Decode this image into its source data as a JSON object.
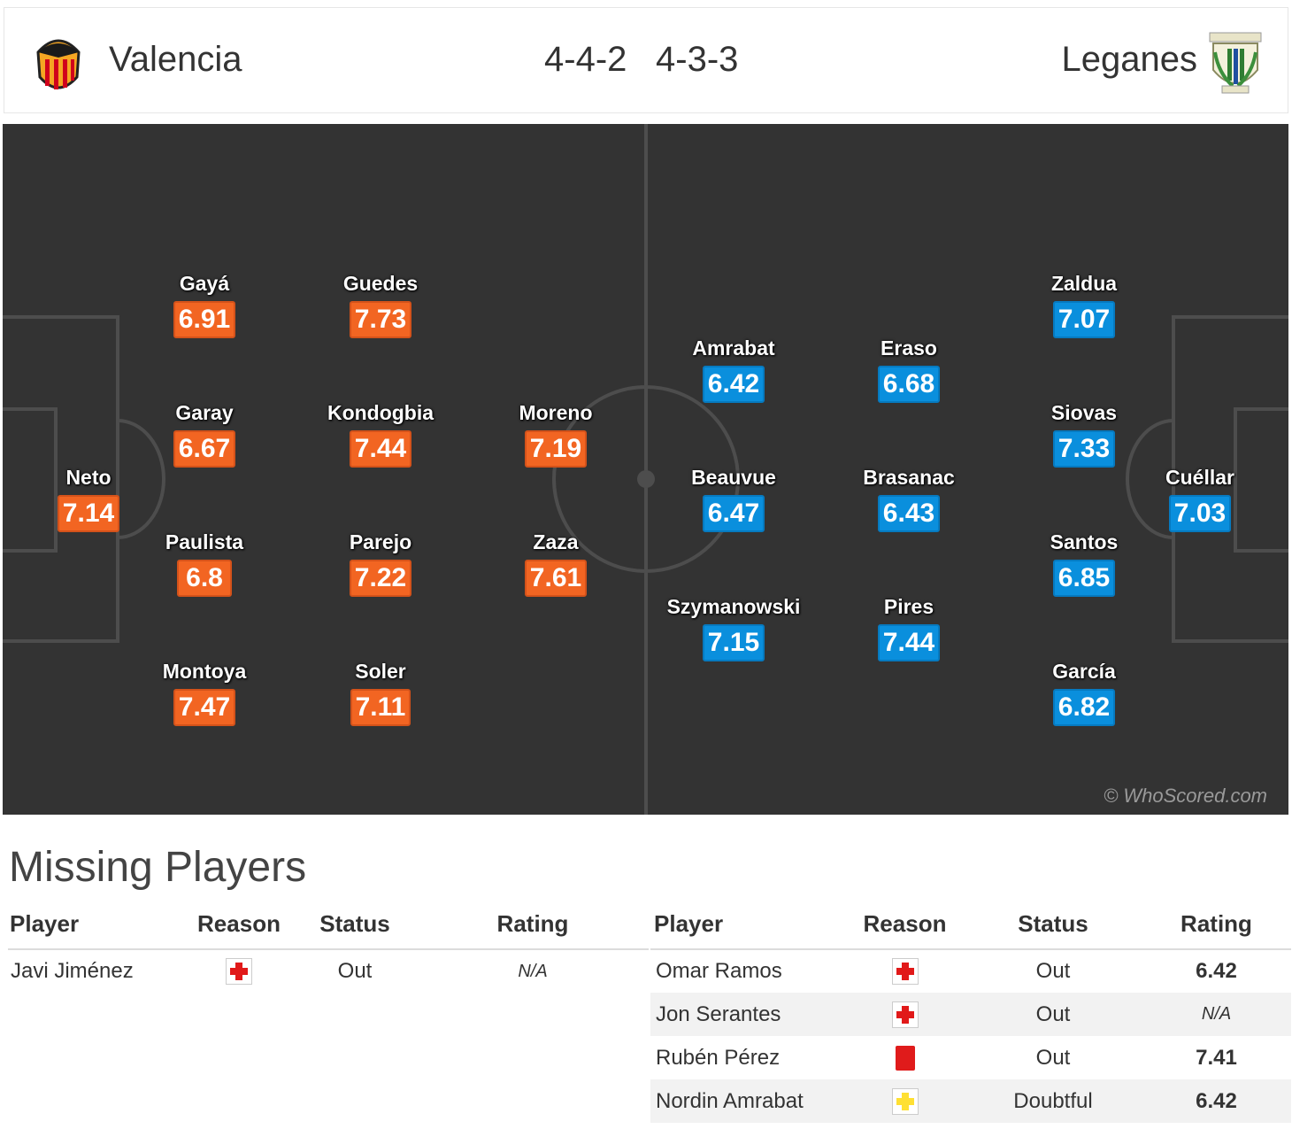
{
  "header": {
    "home_team": "Valencia",
    "away_team": "Leganes",
    "home_formation": "4-4-2",
    "away_formation": "4-3-3"
  },
  "pitch": {
    "watermark": "© WhoScored.com",
    "home_players": [
      {
        "name": "Neto",
        "rating": "7.14"
      },
      {
        "name": "Gayá",
        "rating": "6.91"
      },
      {
        "name": "Garay",
        "rating": "6.67"
      },
      {
        "name": "Paulista",
        "rating": "6.8"
      },
      {
        "name": "Montoya",
        "rating": "7.47"
      },
      {
        "name": "Guedes",
        "rating": "7.73"
      },
      {
        "name": "Kondogbia",
        "rating": "7.44"
      },
      {
        "name": "Parejo",
        "rating": "7.22"
      },
      {
        "name": "Soler",
        "rating": "7.11"
      },
      {
        "name": "Moreno",
        "rating": "7.19"
      },
      {
        "name": "Zaza",
        "rating": "7.61"
      }
    ],
    "away_players": [
      {
        "name": "Amrabat",
        "rating": "6.42"
      },
      {
        "name": "Beauvue",
        "rating": "6.47"
      },
      {
        "name": "Szymanowski",
        "rating": "7.15"
      },
      {
        "name": "Eraso",
        "rating": "6.68"
      },
      {
        "name": "Brasanac",
        "rating": "6.43"
      },
      {
        "name": "Pires",
        "rating": "7.44"
      },
      {
        "name": "Zaldua",
        "rating": "7.07"
      },
      {
        "name": "Siovas",
        "rating": "7.33"
      },
      {
        "name": "Santos",
        "rating": "6.85"
      },
      {
        "name": "García",
        "rating": "6.82"
      },
      {
        "name": "Cuéllar",
        "rating": "7.03"
      }
    ]
  },
  "missing": {
    "title": "Missing Players",
    "columns": [
      "Player",
      "Reason",
      "Status",
      "Rating"
    ],
    "home": [
      {
        "player": "Javi Jiménez",
        "reason_icon": "injury-icon",
        "status": "Out",
        "rating": "N/A"
      }
    ],
    "away": [
      {
        "player": "Omar Ramos",
        "reason_icon": "injury-icon",
        "status": "Out",
        "rating": "6.42"
      },
      {
        "player": "Jon Serantes",
        "reason_icon": "injury-icon",
        "status": "Out",
        "rating": "N/A"
      },
      {
        "player": "Rubén Pérez",
        "reason_icon": "red-card-icon",
        "status": "Out",
        "rating": "7.41"
      },
      {
        "player": "Nordin Amrabat",
        "reason_icon": "doubtful-icon",
        "status": "Doubtful",
        "rating": "6.42"
      }
    ]
  },
  "colors": {
    "home_rating": "#f26522",
    "away_rating": "#0a8fdd",
    "pitch": "#333333",
    "injury": "#e11919",
    "doubtful": "#ffe033"
  }
}
